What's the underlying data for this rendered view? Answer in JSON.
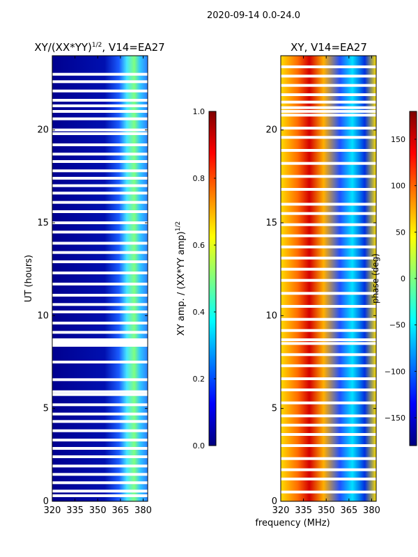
{
  "suptitle": "2020-09-14 0.0-24.0",
  "xlabel_common": "frequency (MHz)",
  "colormap": [
    "#00007f",
    "#0000ff",
    "#007fff",
    "#00ffff",
    "#7fff7f",
    "#ffff00",
    "#ff7f00",
    "#ff0000",
    "#7f0000"
  ],
  "chart_data": [
    {
      "type": "heatmap",
      "title_main": "XY/(XX*YY)",
      "title_exp": "1/2",
      "title_suffix": ", V14=EA27",
      "ylabel": "UT (hours)",
      "xlim": [
        320,
        383
      ],
      "ylim": [
        0,
        24
      ],
      "xticks": [
        320,
        335,
        350,
        365,
        380
      ],
      "yticks": [
        0,
        5,
        10,
        15,
        20
      ],
      "xtick_labels": [
        "320",
        "335",
        "350",
        "365",
        "380"
      ],
      "ytick_labels": [
        "0",
        "5",
        "10",
        "15",
        "20"
      ],
      "value_range": [
        0.0,
        1.0
      ],
      "note": "amplitude low (~0.1) across 320-360 MHz, elevated (~0.3-0.6) from 360-383 MHz; white rows are flagged/missing data",
      "flagged_hours": [
        0.3,
        0.55,
        1.0,
        1.45,
        1.9,
        2.4,
        2.85,
        3.3,
        3.8,
        4.3,
        4.7,
        5.2,
        5.75,
        5.9,
        6.55,
        7.5,
        8.4,
        8.55,
        8.7,
        9.1,
        9.6,
        10.2,
        10.6,
        11.1,
        11.7,
        12.3,
        12.9,
        13.4,
        13.9,
        14.5,
        15.0,
        15.6,
        16.1,
        16.6,
        17.0,
        17.4,
        17.8,
        18.3,
        18.7,
        19.2,
        19.8,
        20.0,
        20.6,
        21.0,
        21.3,
        21.6,
        22.1,
        22.6,
        23.0
      ]
    },
    {
      "type": "heatmap",
      "title": "XY, V14=EA27",
      "xlim": [
        320,
        383
      ],
      "ylim": [
        0,
        24
      ],
      "xticks": [
        320,
        335,
        350,
        365,
        380
      ],
      "yticks": [
        0,
        5,
        10,
        15,
        20
      ],
      "xtick_labels": [
        "320",
        "335",
        "350",
        "365",
        "380"
      ],
      "ytick_labels": [
        "0",
        "5",
        "10",
        "15",
        "20"
      ],
      "value_range": [
        -180,
        180
      ],
      "note": "phase varies strongly across band and time; white rows are flagged/missing data",
      "flagged_hours": [
        0.5,
        1.2,
        1.7,
        2.3,
        3.0,
        3.6,
        4.1,
        4.6,
        5.3,
        6.0,
        6.6,
        7.3,
        7.9,
        8.5,
        8.7,
        9.2,
        9.8,
        10.5,
        11.2,
        11.9,
        12.5,
        13.1,
        13.7,
        14.3,
        14.9,
        15.5,
        16.0,
        16.8,
        17.5,
        18.2,
        18.9,
        19.6,
        20.1,
        20.8,
        21.0,
        21.2,
        21.5,
        21.9,
        22.4,
        22.9,
        23.4
      ]
    }
  ],
  "colorbars": [
    {
      "label_main": "XY amp. / (XX*YY amp)",
      "label_exp": "1/2",
      "range": [
        0.0,
        1.0
      ],
      "ticks": [
        0.0,
        0.2,
        0.4,
        0.6,
        0.8,
        1.0
      ],
      "tick_labels": [
        "0.0",
        "0.2",
        "0.4",
        "0.6",
        "0.8",
        "1.0"
      ]
    },
    {
      "label": "phase (deg)",
      "range": [
        -180,
        180
      ],
      "ticks": [
        -150,
        -100,
        -50,
        0,
        50,
        100,
        150
      ],
      "tick_labels": [
        "−150",
        "−100",
        "−50",
        "0",
        "50",
        "100",
        "150"
      ]
    }
  ]
}
